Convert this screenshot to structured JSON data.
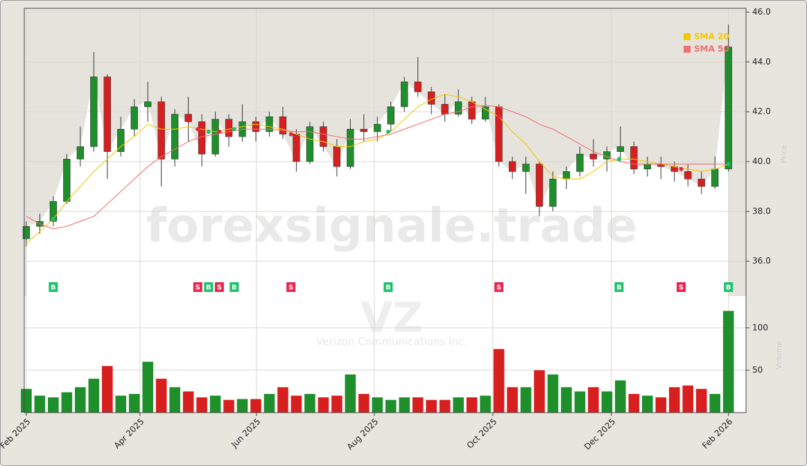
{
  "chart_data": [
    {
      "type": "candlestick",
      "watermark": "forexsignale.trade",
      "symbol": "VZ",
      "company": "Verizon Communications Inc.",
      "y_axis_label": "Price",
      "grid": true,
      "legend": "upper right",
      "up_color": "#1e8f2a",
      "down_color": "#d71f1f",
      "xlim": [
        -0.15,
        53.3
      ],
      "ylim": [
        34.6,
        46.15
      ],
      "yticks": [
        {
          "value": 36,
          "label": "36.0"
        },
        {
          "value": 38,
          "label": "38.0"
        },
        {
          "value": 40,
          "label": "40.0"
        },
        {
          "value": 42,
          "label": "42.0"
        },
        {
          "value": 44,
          "label": "44.0"
        },
        {
          "value": 46,
          "label": "46.0"
        }
      ],
      "open": [
        36.9,
        37.4,
        37.6,
        38.4,
        40.1,
        40.6,
        43.4,
        40.4,
        41.3,
        42.2,
        42.4,
        40.1,
        41.9,
        41.6,
        40.3,
        41.7,
        41.0,
        41.6,
        41.2,
        41.8,
        41.1,
        40.0,
        41.4,
        40.6,
        39.8,
        41.3,
        41.2,
        41.5,
        42.2,
        43.2,
        42.8,
        42.3,
        41.9,
        42.4,
        41.7,
        42.2,
        40.0,
        39.6,
        39.9,
        38.2,
        39.3,
        39.6,
        40.3,
        40.1,
        40.4,
        40.6,
        39.7,
        39.9,
        39.8,
        39.6,
        39.3,
        39.0,
        39.7
      ],
      "high": [
        37.6,
        37.9,
        38.6,
        40.3,
        41.4,
        44.4,
        43.5,
        41.8,
        42.5,
        43.2,
        42.6,
        42.1,
        42.6,
        41.9,
        42.0,
        41.9,
        42.3,
        41.8,
        42.0,
        42.2,
        41.3,
        41.6,
        41.6,
        40.9,
        41.7,
        41.9,
        41.8,
        42.4,
        43.4,
        44.2,
        43.0,
        42.7,
        42.9,
        42.6,
        42.6,
        42.3,
        40.2,
        40.2,
        40.0,
        39.6,
        39.8,
        40.6,
        40.9,
        40.6,
        41.4,
        40.8,
        40.2,
        40.2,
        40.0,
        39.9,
        39.6,
        40.2,
        45.5
      ],
      "low": [
        36.6,
        37.1,
        37.4,
        38.3,
        39.8,
        40.4,
        39.3,
        40.2,
        41.0,
        41.6,
        39.0,
        39.8,
        40.8,
        39.8,
        40.2,
        40.6,
        40.8,
        40.8,
        41.0,
        40.9,
        39.6,
        39.9,
        40.4,
        39.4,
        39.7,
        40.8,
        40.8,
        41.2,
        42.0,
        42.6,
        41.9,
        41.6,
        41.8,
        41.5,
        41.6,
        39.8,
        39.3,
        38.7,
        37.8,
        38.0,
        38.9,
        39.4,
        39.8,
        39.6,
        40.0,
        39.5,
        39.4,
        39.3,
        39.2,
        39.0,
        38.7,
        38.9,
        39.6
      ],
      "close": [
        37.4,
        37.6,
        38.4,
        40.1,
        40.6,
        43.4,
        40.4,
        41.3,
        42.2,
        42.4,
        40.1,
        41.9,
        41.6,
        40.3,
        41.7,
        41.0,
        41.6,
        41.2,
        41.8,
        41.1,
        40.0,
        41.4,
        40.6,
        39.8,
        41.3,
        41.2,
        41.5,
        42.2,
        43.2,
        42.8,
        42.3,
        41.9,
        42.4,
        41.7,
        42.2,
        40.0,
        39.6,
        39.9,
        38.2,
        39.3,
        39.6,
        40.3,
        40.1,
        40.4,
        40.6,
        39.7,
        39.9,
        39.8,
        39.6,
        39.3,
        39.0,
        39.7,
        44.6
      ],
      "series": [
        {
          "name": "SMA 20",
          "color": "#f2c800",
          "values": [
            36.7,
            37.2,
            37.7,
            38.4,
            39.0,
            39.6,
            40.1,
            40.6,
            41.0,
            41.5,
            41.3,
            41.3,
            41.4,
            41.3,
            41.2,
            41.3,
            41.4,
            41.5,
            41.4,
            41.3,
            41.1,
            40.9,
            40.8,
            40.6,
            40.6,
            40.8,
            40.9,
            41.2,
            41.7,
            42.2,
            42.5,
            42.7,
            42.6,
            42.4,
            42.1,
            41.8,
            41.2,
            40.7,
            40.0,
            39.4,
            39.3,
            39.3,
            39.6,
            40.0,
            40.1,
            40.1,
            40.0,
            39.9,
            39.8,
            39.7,
            39.6,
            39.7,
            39.9
          ]
        },
        {
          "name": "SMA 50",
          "color": "#f07070",
          "values": [
            37.8,
            37.5,
            37.3,
            37.4,
            37.6,
            37.8,
            38.3,
            38.8,
            39.3,
            39.8,
            40.2,
            40.5,
            40.8,
            41.0,
            41.1,
            41.2,
            41.3,
            41.3,
            41.3,
            41.25,
            41.2,
            41.2,
            41.1,
            41.0,
            40.9,
            40.9,
            41.0,
            41.1,
            41.3,
            41.5,
            41.7,
            41.9,
            42.0,
            42.2,
            42.25,
            42.2,
            42.0,
            41.8,
            41.5,
            41.3,
            41.0,
            40.7,
            40.4,
            40.2,
            40.0,
            39.9,
            39.9,
            39.9,
            39.9,
            39.9,
            39.9,
            39.9,
            39.9
          ]
        }
      ],
      "signals": [
        {
          "index": 2,
          "label": "B",
          "color": "#1cc16a"
        },
        {
          "index": 12.7,
          "label": "S",
          "color": "#e8234f"
        },
        {
          "index": 13.5,
          "label": "B",
          "color": "#1cc16a"
        },
        {
          "index": 14.3,
          "label": "S",
          "color": "#e8234f"
        },
        {
          "index": 15.4,
          "label": "B",
          "color": "#1cc16a"
        },
        {
          "index": 19.6,
          "label": "S",
          "color": "#e8234f"
        },
        {
          "index": 26.8,
          "label": "B",
          "color": "#1cc16a"
        },
        {
          "index": 35,
          "label": "S",
          "color": "#e8234f"
        },
        {
          "index": 43.9,
          "label": "B",
          "color": "#1cc16a"
        },
        {
          "index": 48.5,
          "label": "S",
          "color": "#e8234f"
        },
        {
          "index": 52,
          "label": "B",
          "color": "#1cc16a"
        }
      ]
    },
    {
      "type": "bar",
      "y_axis_label": "Volume",
      "grid": true,
      "xlim": [
        -0.15,
        53.3
      ],
      "ylim": [
        0,
        135
      ],
      "yticks": [
        50,
        100
      ],
      "xticks": [
        {
          "value": 0,
          "label": "Feb 2025"
        },
        {
          "value": 8.42,
          "label": "Apr 2025"
        },
        {
          "value": 17.04,
          "label": "Jun 2025"
        },
        {
          "value": 25.77,
          "label": "Aug 2025"
        },
        {
          "value": 34.55,
          "label": "Oct 2025"
        },
        {
          "value": 43.33,
          "label": "Dec 2025"
        },
        {
          "value": 52,
          "label": "Feb 2026"
        }
      ],
      "values": [
        28,
        20,
        18,
        24,
        30,
        40,
        55,
        20,
        22,
        60,
        40,
        30,
        25,
        18,
        20,
        15,
        16,
        16,
        22,
        30,
        20,
        22,
        18,
        20,
        45,
        22,
        18,
        15,
        18,
        18,
        15,
        15,
        18,
        18,
        20,
        75,
        30,
        30,
        50,
        45,
        30,
        25,
        30,
        25,
        38,
        22,
        20,
        18,
        30,
        32,
        28,
        22,
        120
      ]
    }
  ]
}
